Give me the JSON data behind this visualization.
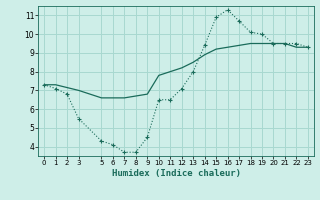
{
  "xlabel": "Humidex (Indice chaleur)",
  "background_color": "#ceeee8",
  "grid_color": "#a8d8d0",
  "line_color": "#1a6b5a",
  "xlim": [
    -0.5,
    23.5
  ],
  "ylim": [
    3.5,
    11.5
  ],
  "xticks": [
    0,
    1,
    2,
    3,
    5,
    6,
    7,
    8,
    9,
    10,
    11,
    12,
    13,
    14,
    15,
    16,
    17,
    18,
    19,
    20,
    21,
    22,
    23
  ],
  "yticks": [
    4,
    5,
    6,
    7,
    8,
    9,
    10,
    11
  ],
  "series1_x": [
    0,
    1,
    2,
    3,
    5,
    6,
    7,
    8,
    9,
    10,
    11,
    12,
    13,
    14,
    15,
    16,
    17,
    18,
    19,
    20,
    21,
    22,
    23
  ],
  "series1_y": [
    7.3,
    7.1,
    6.8,
    5.5,
    4.3,
    4.1,
    3.7,
    3.7,
    4.5,
    6.5,
    6.5,
    7.1,
    8.0,
    9.4,
    10.9,
    11.3,
    10.7,
    10.1,
    10.0,
    9.5,
    9.5,
    9.5,
    9.3
  ],
  "series2_x": [
    0,
    1,
    2,
    3,
    5,
    6,
    7,
    8,
    9,
    10,
    11,
    12,
    13,
    14,
    15,
    16,
    17,
    18,
    19,
    20,
    21,
    22,
    23
  ],
  "series2_y": [
    7.3,
    7.3,
    7.15,
    7.0,
    6.6,
    6.6,
    6.6,
    6.7,
    6.8,
    7.8,
    8.0,
    8.2,
    8.5,
    8.9,
    9.2,
    9.3,
    9.4,
    9.5,
    9.5,
    9.5,
    9.5,
    9.3,
    9.3
  ]
}
